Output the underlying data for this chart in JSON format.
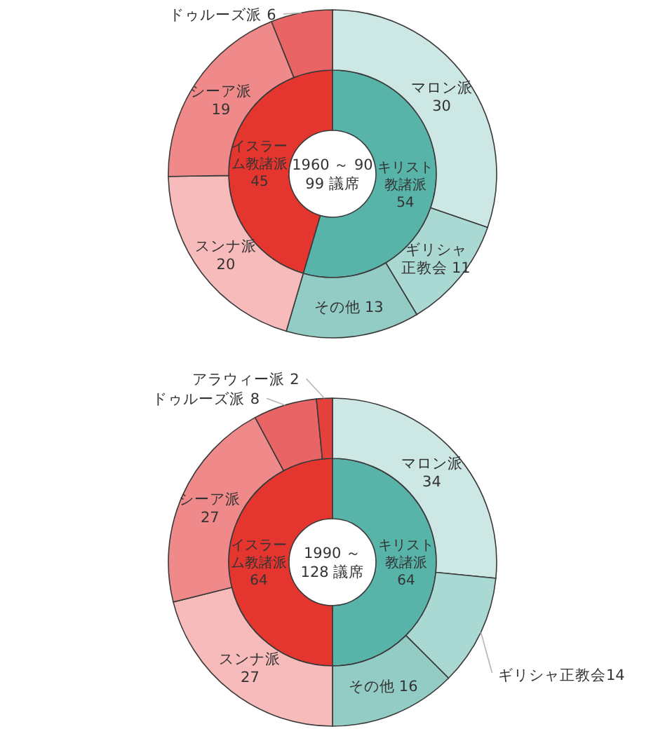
{
  "chart_data": [
    {
      "type": "donut",
      "title": "1960 ～ 90",
      "subtitle": "99 議席",
      "data_labels": true,
      "categories": [
        "キリスト教諸派",
        "イスラーム教諸派"
      ],
      "values": [
        54,
        45
      ],
      "colors": [
        "#58b4a9",
        "#e5352f"
      ]
    },
    {
      "type": "donut",
      "data_labels": true,
      "categories": [
        "マロン派",
        "ギリシャ正教会",
        "その他",
        "スンナ派",
        "シーア派",
        "ドゥルーズ派"
      ],
      "values": [
        30,
        11,
        13,
        20,
        19,
        6
      ],
      "colors": [
        "#cde7e4",
        "#aad8d3",
        "#92ccc5",
        "#f8bbbb",
        "#f08a8a",
        "#e96464"
      ]
    },
    {
      "type": "donut",
      "title": "1990 ～",
      "subtitle": "128 議席",
      "data_labels": true,
      "categories": [
        "キリスト教諸派",
        "イスラーム教諸派"
      ],
      "values": [
        64,
        64
      ],
      "colors": [
        "#58b4a9",
        "#e5352f"
      ]
    },
    {
      "type": "donut",
      "data_labels": true,
      "categories": [
        "マロン派",
        "ギリシャ正教会",
        "その他",
        "スンナ派",
        "シーア派",
        "ドゥルーズ派",
        "アラウィー派"
      ],
      "values": [
        34,
        14,
        16,
        27,
        27,
        8,
        2
      ],
      "colors": [
        "#cde7e4",
        "#aad8d3",
        "#92ccc5",
        "#f8bbbb",
        "#f08a8a",
        "#e96464",
        "#e4403c"
      ]
    }
  ]
}
